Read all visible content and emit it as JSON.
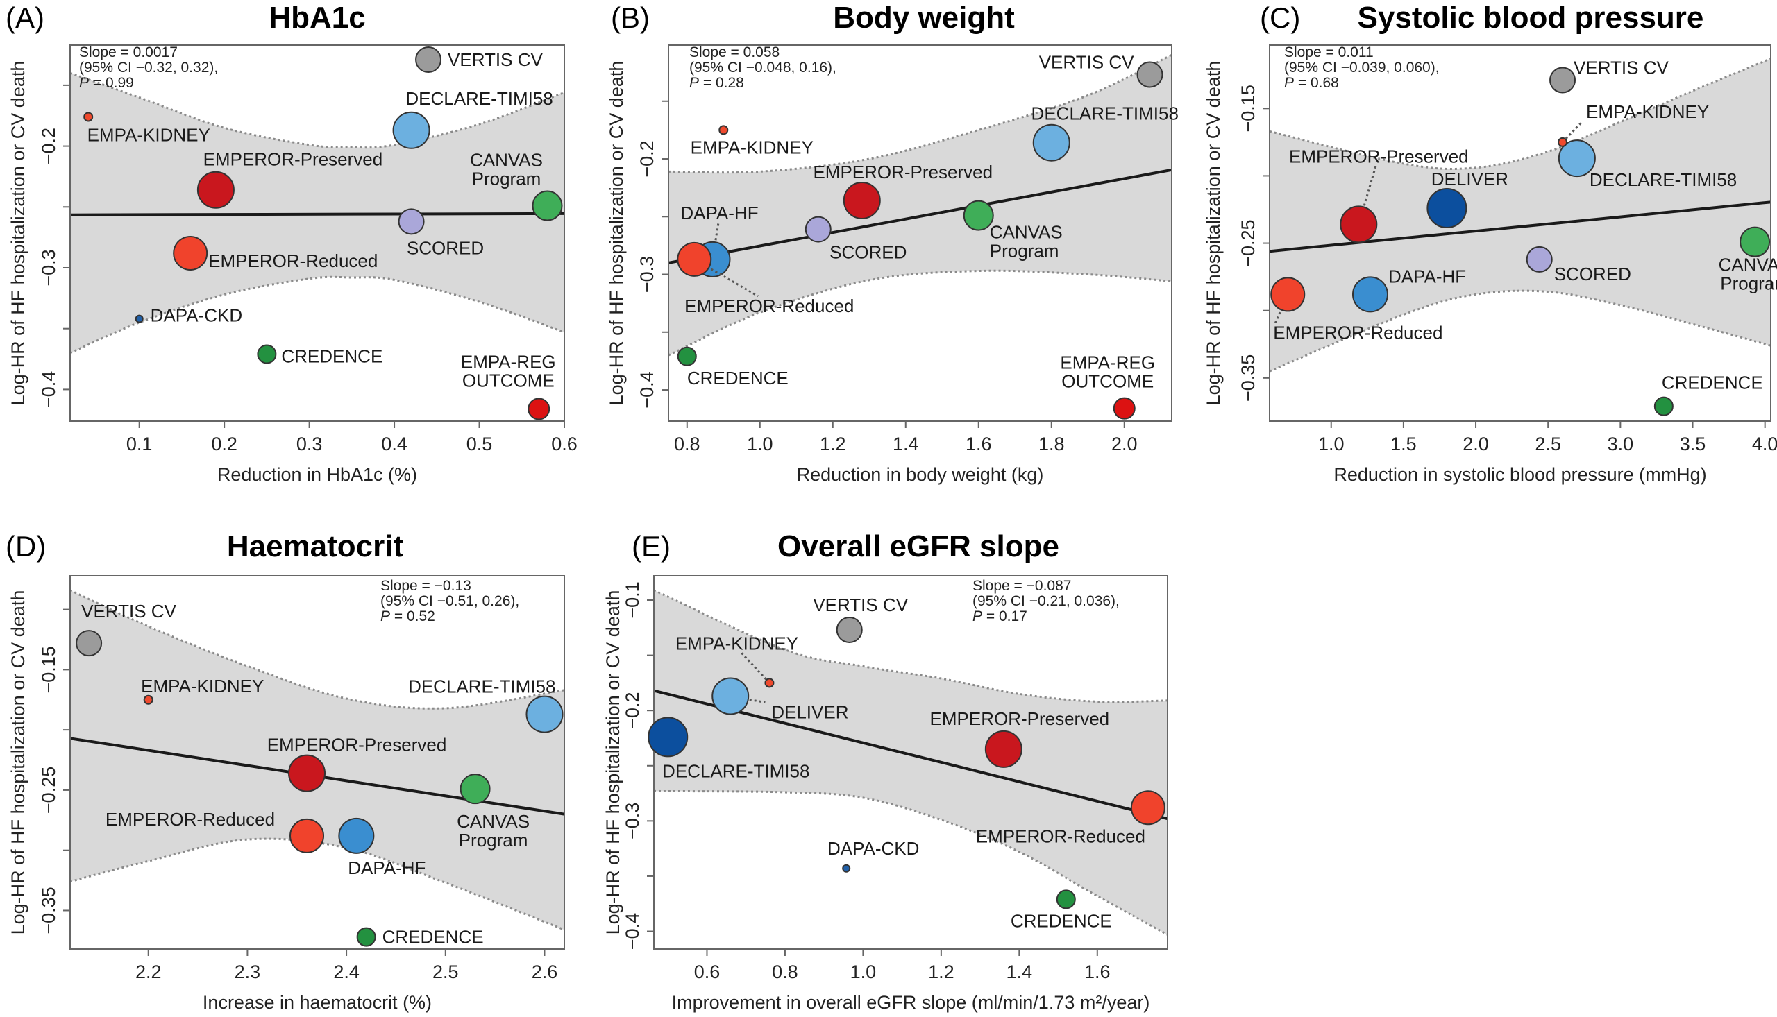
{
  "chart_data": [
    {
      "type": "scatter",
      "panel_label": "(A)",
      "title": "HbA1c",
      "xlabel": "Reduction in HbA1c (%)",
      "ylabel": "Log-HR of HF hospitalization or CV death",
      "xlim": [
        0.0186,
        0.6
      ],
      "ylim": [
        -0.426,
        -0.117
      ],
      "xticks": [
        0.1,
        0.2,
        0.3,
        0.4,
        0.5,
        0.6
      ],
      "xtick_labels": [
        "0.1",
        "0.2",
        "0.3",
        "0.4",
        "0.5",
        "0.6"
      ],
      "yticks_all": [
        -0.4,
        -0.35,
        -0.3,
        -0.25,
        -0.2,
        -0.15
      ],
      "yticks": [
        -0.4,
        -0.3,
        -0.2
      ],
      "ytick_labels": [
        "−0.4",
        "−0.3",
        "−0.2"
      ],
      "annotation": {
        "lines": [
          "Slope = 0.0017",
          "(95% CI −0.32, 0.32),"
        ],
        "p_symbol": "P",
        "p_text": " = 0.99"
      },
      "regression": {
        "x": [
          0.0186,
          0.6
        ],
        "y": [
          -0.2565,
          -0.2555
        ]
      },
      "ci_upper": {
        "x": [
          0.0186,
          0.1,
          0.2,
          0.3,
          0.35,
          0.4,
          0.5,
          0.6
        ],
        "y": [
          -0.14,
          -0.16,
          -0.185,
          -0.199,
          -0.201,
          -0.199,
          -0.182,
          -0.156
        ]
      },
      "ci_lower": {
        "x": [
          0.0186,
          0.1,
          0.2,
          0.3,
          0.35,
          0.4,
          0.5,
          0.6
        ],
        "y": [
          -0.37,
          -0.345,
          -0.322,
          -0.309,
          -0.308,
          -0.31,
          -0.328,
          -0.353
        ]
      },
      "points": [
        {
          "label": [
            "VERTIS CV"
          ],
          "x": 0.44,
          "y": -0.129,
          "color": "#9b9b9b"
        },
        {
          "label": [
            "DECLARE-TIMI58"
          ],
          "x": 0.42,
          "y": -0.187,
          "color": "#6cb0e0"
        },
        {
          "label": [
            "EMPA-KIDNEY"
          ],
          "x": 0.04,
          "y": -0.176,
          "color": "#ef4a2e"
        },
        {
          "label": [
            "EMPEROR-Preserved"
          ],
          "x": 0.19,
          "y": -0.236,
          "color": "#c9171e"
        },
        {
          "label": [
            "CANVAS",
            "Program"
          ],
          "x": 0.58,
          "y": -0.249,
          "color": "#3fae58"
        },
        {
          "label": [
            "SCORED"
          ],
          "x": 0.42,
          "y": -0.262,
          "color": "#aaa7d9"
        },
        {
          "label": [
            "EMPEROR-Reduced"
          ],
          "x": 0.16,
          "y": -0.288,
          "color": "#f0432c"
        },
        {
          "label": [
            "DAPA-CKD"
          ],
          "x": 0.1,
          "y": -0.342,
          "color": "#2160a8"
        },
        {
          "label": [
            "CREDENCE"
          ],
          "x": 0.25,
          "y": -0.371,
          "color": "#239140"
        },
        {
          "label": [
            "EMPA-REG",
            "OUTCOME"
          ],
          "x": 0.57,
          "y": -0.416,
          "color": "#dc1212"
        }
      ]
    },
    {
      "type": "scatter",
      "panel_label": "(B)",
      "title": "Body weight",
      "xlabel": "Reduction in body weight (kg)",
      "ylabel": "Log-HR of HF hospitalization or CV death",
      "xlim": [
        0.749,
        2.13
      ],
      "ylim": [
        -0.427,
        -0.1015
      ],
      "xticks": [
        0.8,
        1.0,
        1.2,
        1.4,
        1.6,
        1.8,
        2.0
      ],
      "xtick_labels": [
        "0.8",
        "1.0",
        "1.2",
        "1.4",
        "1.6",
        "1.8",
        "2.0"
      ],
      "yticks_all": [
        -0.4,
        -0.35,
        -0.3,
        -0.25,
        -0.2,
        -0.15
      ],
      "yticks": [
        -0.4,
        -0.3,
        -0.2
      ],
      "ytick_labels": [
        "−0.4",
        "−0.3",
        "−0.2"
      ],
      "annotation": {
        "lines": [
          "Slope = 0.058",
          "(95% CI −0.048, 0.16),"
        ],
        "p_symbol": "P",
        "p_text": " = 0.28"
      },
      "regression": {
        "x": [
          0.749,
          2.13
        ],
        "y": [
          -0.29,
          -0.2095
        ]
      },
      "ci_upper": {
        "x": [
          0.749,
          1.0,
          1.3,
          1.6,
          1.9,
          2.13
        ],
        "y": [
          -0.211,
          -0.211,
          -0.2,
          -0.175,
          -0.145,
          -0.11
        ]
      },
      "ci_lower": {
        "x": [
          0.749,
          1.0,
          1.3,
          1.6,
          1.9,
          2.13
        ],
        "y": [
          -0.37,
          -0.333,
          -0.305,
          -0.297,
          -0.3,
          -0.306
        ]
      },
      "points": [
        {
          "label": [
            "VERTIS CV"
          ],
          "x": 2.07,
          "y": -0.127,
          "color": "#9b9b9b"
        },
        {
          "label": [
            "DECLARE-TIMI58"
          ],
          "x": 1.8,
          "y": -0.186,
          "color": "#6cb0e0"
        },
        {
          "label": [
            "EMPA-KIDNEY"
          ],
          "x": 0.9,
          "y": -0.175,
          "color": "#ef4a2e"
        },
        {
          "label": [
            "EMPEROR-Preserved"
          ],
          "x": 1.28,
          "y": -0.236,
          "color": "#c9171e"
        },
        {
          "label": [
            "CANVAS",
            "Program"
          ],
          "x": 1.6,
          "y": -0.249,
          "color": "#3fae58"
        },
        {
          "label": [
            "SCORED"
          ],
          "x": 1.16,
          "y": -0.261,
          "color": "#aaa7d9"
        },
        {
          "label": [
            "DAPA-HF"
          ],
          "x": 0.87,
          "y": -0.287,
          "color": "#3a8ed0"
        },
        {
          "label": [
            "EMPEROR-Reduced"
          ],
          "x": 0.82,
          "y": -0.287,
          "color": "#f0432c"
        },
        {
          "label": [
            "CREDENCE"
          ],
          "x": 0.8,
          "y": -0.371,
          "color": "#239140"
        },
        {
          "label": [
            "EMPA-REG",
            "OUTCOME"
          ],
          "x": 2.0,
          "y": -0.416,
          "color": "#dc1212"
        }
      ]
    },
    {
      "type": "scatter",
      "panel_label": "(C)",
      "title": "Systolic blood pressure",
      "xlabel": "Reduction in systolic blood pressure (mmHg)",
      "ylabel": "Log-HR of HF hospitalization or CV death",
      "xlim": [
        0.574,
        4.04
      ],
      "ylim": [
        -0.382,
        -0.103
      ],
      "xticks": [
        1.0,
        1.5,
        2.0,
        2.5,
        3.0,
        3.5,
        4.0
      ],
      "xtick_labels": [
        "1.0",
        "1.5",
        "2.0",
        "2.5",
        "3.0",
        "3.5",
        "4.0"
      ],
      "yticks_all": [
        -0.35,
        -0.3,
        -0.25,
        -0.2,
        -0.15
      ],
      "yticks": [
        -0.35,
        -0.25,
        -0.15
      ],
      "ytick_labels": [
        "−0.35",
        "−0.25",
        "−0.15"
      ],
      "annotation": {
        "lines": [
          "Slope = 0.011",
          "(95% CI −0.039, 0.060),"
        ],
        "p_symbol": "P",
        "p_text": " = 0.68"
      },
      "regression": {
        "x": [
          0.574,
          4.04
        ],
        "y": [
          -0.256,
          -0.2195
        ]
      },
      "ci_upper": {
        "x": [
          0.574,
          1.5,
          2.0,
          2.5,
          3.0,
          3.5,
          4.04
        ],
        "y": [
          -0.167,
          -0.191,
          -0.194,
          -0.182,
          -0.16,
          -0.137,
          -0.113
        ]
      },
      "ci_lower": {
        "x": [
          0.574,
          1.5,
          2.0,
          2.5,
          3.0,
          3.5,
          4.04
        ],
        "y": [
          -0.345,
          -0.303,
          -0.288,
          -0.286,
          -0.296,
          -0.31,
          -0.326
        ]
      },
      "points": [
        {
          "label": [
            "VERTIS CV"
          ],
          "x": 2.6,
          "y": -0.129,
          "color": "#9b9b9b"
        },
        {
          "label": [
            "DECLARE-TIMI58"
          ],
          "x": 2.7,
          "y": -0.187,
          "color": "#6cb0e0"
        },
        {
          "label": [
            "EMPA-KIDNEY"
          ],
          "x": 2.6,
          "y": -0.175,
          "color": "#ef4a2e"
        },
        {
          "label": [
            "EMPEROR-Preserved"
          ],
          "x": 1.19,
          "y": -0.236,
          "color": "#c9171e"
        },
        {
          "label": [
            "DELIVER"
          ],
          "x": 1.8,
          "y": -0.224,
          "color": "#0c4f9e"
        },
        {
          "label": [
            "CANVAS",
            "Program"
          ],
          "x": 3.93,
          "y": -0.249,
          "color": "#3fae58"
        },
        {
          "label": [
            "SCORED"
          ],
          "x": 2.44,
          "y": -0.262,
          "color": "#aaa7d9"
        },
        {
          "label": [
            "DAPA-HF"
          ],
          "x": 1.27,
          "y": -0.288,
          "color": "#3a8ed0"
        },
        {
          "label": [
            "EMPEROR-Reduced"
          ],
          "x": 0.7,
          "y": -0.288,
          "color": "#f0432c"
        },
        {
          "label": [
            "CREDENCE"
          ],
          "x": 3.3,
          "y": -0.371,
          "color": "#239140"
        }
      ]
    },
    {
      "type": "scatter",
      "panel_label": "(D)",
      "title": "Haematocrit",
      "xlabel": "Increase in haematocrit (%)",
      "ylabel": "Log-HR of HF hospitalization or CV death",
      "xlim": [
        2.121,
        2.62
      ],
      "ylim": [
        -0.382,
        -0.072
      ],
      "xticks": [
        2.2,
        2.3,
        2.4,
        2.5,
        2.6
      ],
      "xtick_labels": [
        "2.2",
        "2.3",
        "2.4",
        "2.5",
        "2.6"
      ],
      "yticks_all": [
        -0.35,
        -0.3,
        -0.25,
        -0.2,
        -0.15,
        -0.1
      ],
      "yticks": [
        -0.35,
        -0.25,
        -0.15
      ],
      "ytick_labels": [
        "−0.35",
        "−0.25",
        "−0.15"
      ],
      "annotation": {
        "lines": [
          "Slope = −0.13",
          "(95% CI −0.51, 0.26),"
        ],
        "p_symbol": "P",
        "p_text": " = 0.52"
      },
      "regression": {
        "x": [
          2.121,
          2.62
        ],
        "y": [
          -0.207,
          -0.27
        ]
      },
      "ci_upper": {
        "x": [
          2.121,
          2.2,
          2.3,
          2.4,
          2.5,
          2.62
        ],
        "y": [
          -0.084,
          -0.114,
          -0.147,
          -0.174,
          -0.182,
          -0.167
        ]
      },
      "ci_lower": {
        "x": [
          2.121,
          2.2,
          2.3,
          2.4,
          2.5,
          2.62
        ],
        "y": [
          -0.326,
          -0.309,
          -0.291,
          -0.298,
          -0.327,
          -0.366
        ]
      },
      "points": [
        {
          "label": [
            "VERTIS CV"
          ],
          "x": 2.14,
          "y": -0.128,
          "color": "#9b9b9b"
        },
        {
          "label": [
            "EMPA-KIDNEY"
          ],
          "x": 2.2,
          "y": -0.175,
          "color": "#ef4a2e"
        },
        {
          "label": [
            "DECLARE-TIMI58"
          ],
          "x": 2.6,
          "y": -0.187,
          "color": "#6cb0e0"
        },
        {
          "label": [
            "EMPEROR-Preserved"
          ],
          "x": 2.36,
          "y": -0.236,
          "color": "#c9171e"
        },
        {
          "label": [
            "CANVAS",
            "Program"
          ],
          "x": 2.53,
          "y": -0.249,
          "color": "#3fae58"
        },
        {
          "label": [
            "EMPEROR-Reduced"
          ],
          "x": 2.36,
          "y": -0.288,
          "color": "#f0432c"
        },
        {
          "label": [
            "DAPA-HF"
          ],
          "x": 2.41,
          "y": -0.288,
          "color": "#3a8ed0"
        },
        {
          "label": [
            "CREDENCE"
          ],
          "x": 2.42,
          "y": -0.372,
          "color": "#239140"
        }
      ]
    },
    {
      "type": "scatter",
      "panel_label": "(E)",
      "title": "Overall eGFR slope",
      "xlabel": "Improvement in overall eGFR slope (ml/min/1.73 m²/year)",
      "ylabel": "Log-HR of HF hospitalization or CV death",
      "xlim": [
        0.464,
        1.78
      ],
      "ylim": [
        -0.416,
        -0.078
      ],
      "xticks": [
        0.6,
        0.8,
        1.0,
        1.2,
        1.4,
        1.6
      ],
      "xtick_labels": [
        "0.6",
        "0.8",
        "1.0",
        "1.2",
        "1.4",
        "1.6"
      ],
      "yticks_all": [
        -0.4,
        -0.35,
        -0.3,
        -0.25,
        -0.2,
        -0.15,
        -0.1
      ],
      "yticks": [
        -0.4,
        -0.3,
        -0.2,
        -0.1
      ],
      "ytick_labels": [
        "−0.4",
        "−0.3",
        "−0.2",
        "−0.1"
      ],
      "annotation": {
        "lines": [
          "Slope = −0.087",
          "(95% CI −0.21, 0.036),"
        ],
        "p_symbol": "P",
        "p_text": " = 0.17"
      },
      "regression": {
        "x": [
          0.464,
          1.78
        ],
        "y": [
          -0.182,
          -0.298
        ]
      },
      "ci_upper": {
        "x": [
          0.464,
          0.8,
          1.0,
          1.2,
          1.4,
          1.6,
          1.78
        ],
        "y": [
          -0.091,
          -0.145,
          -0.16,
          -0.171,
          -0.185,
          -0.192,
          -0.191
        ]
      },
      "ci_lower": {
        "x": [
          0.464,
          0.8,
          1.0,
          1.2,
          1.4,
          1.6,
          1.78
        ],
        "y": [
          -0.273,
          -0.274,
          -0.279,
          -0.299,
          -0.328,
          -0.368,
          -0.403
        ]
      },
      "points": [
        {
          "label": [
            "VERTIS CV"
          ],
          "x": 0.965,
          "y": -0.127,
          "color": "#9b9b9b"
        },
        {
          "label": [
            "EMPA-KIDNEY"
          ],
          "x": 0.76,
          "y": -0.175,
          "color": "#ef4a2e"
        },
        {
          "label": [
            "DELIVER"
          ],
          "x": 0.66,
          "y": -0.187,
          "color": "#6cb0e0"
        },
        {
          "label": [
            "DECLARE-TIMI58"
          ],
          "x": 0.5,
          "y": -0.224,
          "color": "#0c4f9e"
        },
        {
          "label": [
            "EMPEROR-Preserved"
          ],
          "x": 1.36,
          "y": -0.235,
          "color": "#c9171e"
        },
        {
          "label": [
            "EMPEROR-Reduced"
          ],
          "x": 1.73,
          "y": -0.288,
          "color": "#f0432c"
        },
        {
          "label": [
            "DAPA-CKD"
          ],
          "x": 0.957,
          "y": -0.343,
          "color": "#2160a8"
        },
        {
          "label": [
            "CREDENCE"
          ],
          "x": 1.52,
          "y": -0.371,
          "color": "#239140"
        }
      ]
    }
  ]
}
